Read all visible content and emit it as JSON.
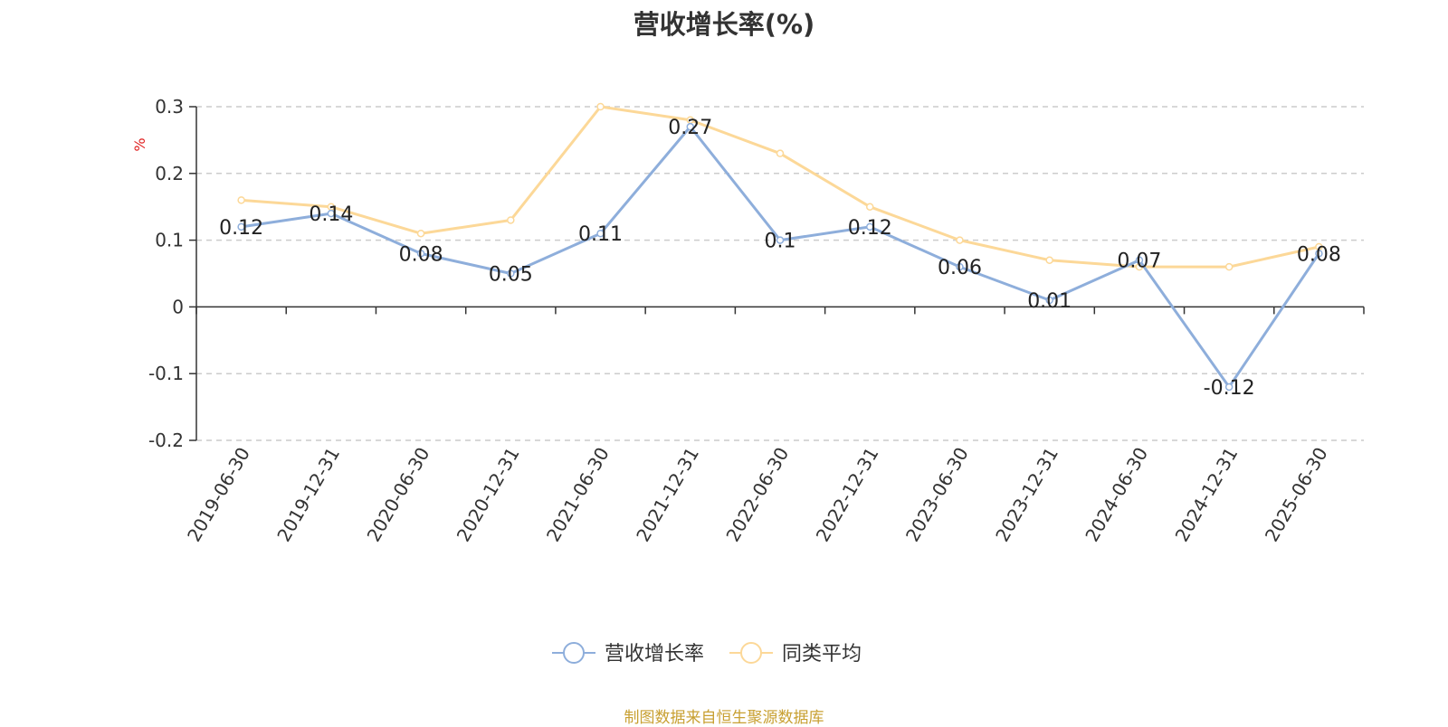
{
  "chart_data": {
    "type": "line",
    "title": "营收增长率(%)",
    "ylabel": "%",
    "xlabel": "",
    "categories": [
      "2019-06-30",
      "2019-12-31",
      "2020-06-30",
      "2020-12-31",
      "2021-06-30",
      "2021-12-31",
      "2022-06-30",
      "2022-12-31",
      "2023-06-30",
      "2023-12-31",
      "2024-06-30",
      "2024-12-31",
      "2025-06-30"
    ],
    "series": [
      {
        "name": "营收增长率",
        "color": "#8eaedb",
        "values": [
          0.12,
          0.14,
          0.08,
          0.05,
          0.11,
          0.27,
          0.1,
          0.12,
          0.06,
          0.01,
          0.07,
          -0.12,
          0.08
        ],
        "labels": [
          "0.12",
          "0.14",
          "0.08",
          "0.05",
          "0.11",
          "0.27",
          "0.1",
          "0.12",
          "0.06",
          "0.01",
          "0.07",
          "-0.12",
          "0.08"
        ]
      },
      {
        "name": "同类平均",
        "color": "#fcd898",
        "values": [
          0.16,
          0.15,
          0.11,
          0.13,
          0.3,
          0.28,
          0.23,
          0.15,
          0.1,
          0.07,
          0.06,
          0.06,
          0.09
        ]
      }
    ],
    "ylim": [
      -0.2,
      0.3
    ],
    "yticks": [
      -0.2,
      -0.1,
      0,
      0.1,
      0.2,
      0.3
    ],
    "ytick_labels": [
      "-0.2",
      "-0.1",
      "0",
      "0.1",
      "0.2",
      "0.3"
    ],
    "grid": "horizontal-dashed",
    "legend_position": "bottom-center"
  },
  "source_text": "制图数据来自恒生聚源数据库"
}
